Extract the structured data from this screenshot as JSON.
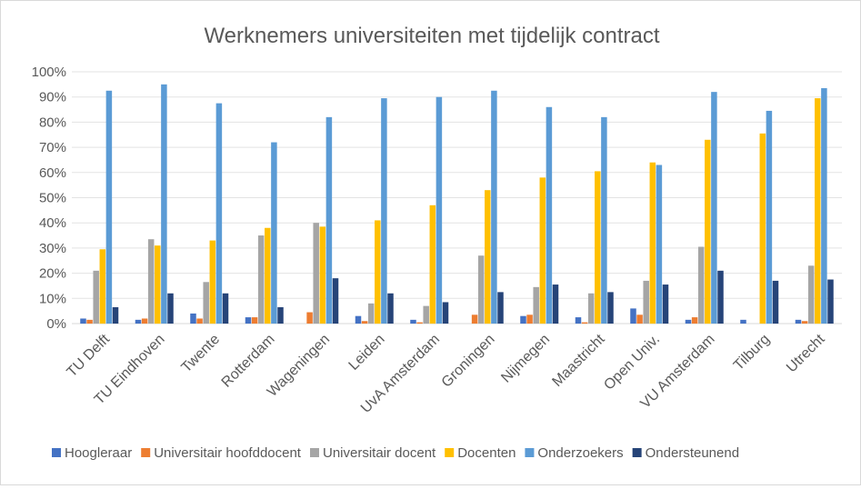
{
  "chart_data": {
    "type": "bar",
    "title": "Werknemers universiteiten met tijdelijk contract",
    "xlabel": "",
    "ylabel": "",
    "ylim": [
      0,
      100
    ],
    "y_ticks": [
      "0%",
      "10%",
      "20%",
      "30%",
      "40%",
      "50%",
      "60%",
      "70%",
      "80%",
      "90%",
      "100%"
    ],
    "grid": true,
    "legend_position": "bottom",
    "categories": [
      "TU Delft",
      "TU Eindhoven",
      "Twente",
      "Rotterdam",
      "Wageningen",
      "Leiden",
      "UvA Amsterdam",
      "Groningen",
      "Nijmegen",
      "Maastricht",
      "Open Univ.",
      "VU Amsterdam",
      "Tilburg",
      "Utrecht"
    ],
    "series": [
      {
        "name": "Hoogleraar",
        "color": "#4472c4",
        "values": [
          2,
          1.5,
          4,
          2.5,
          0,
          3,
          1.5,
          0,
          3,
          2.5,
          6,
          1.5,
          1.5,
          1.5
        ]
      },
      {
        "name": "Universitair hoofddocent",
        "color": "#ed7d31",
        "values": [
          1.5,
          2,
          2,
          2.5,
          4.5,
          1,
          0.5,
          3.5,
          3.5,
          0.5,
          3.5,
          2.5,
          0,
          1
        ]
      },
      {
        "name": "Universitair docent",
        "color": "#a5a5a5",
        "values": [
          21,
          33.5,
          16.5,
          35,
          40,
          8,
          7,
          27,
          14.5,
          12,
          17,
          30.5,
          0,
          23
        ]
      },
      {
        "name": "Docenten",
        "color": "#ffc000",
        "values": [
          29.5,
          31,
          33,
          38,
          38.5,
          41,
          47,
          53,
          58,
          60.5,
          64,
          73,
          75.5,
          89.5
        ]
      },
      {
        "name": "Onderzoekers",
        "color": "#5b9bd5",
        "values": [
          92.5,
          95,
          87.5,
          72,
          82,
          89.5,
          90,
          92.5,
          86,
          82,
          63,
          92,
          84.5,
          93.5
        ]
      },
      {
        "name": "Ondersteunend",
        "color": "#264478",
        "values": [
          6.5,
          12,
          12,
          6.5,
          18,
          12,
          8.5,
          12.5,
          15.5,
          12.5,
          15.5,
          21,
          17,
          17.5
        ]
      }
    ]
  }
}
